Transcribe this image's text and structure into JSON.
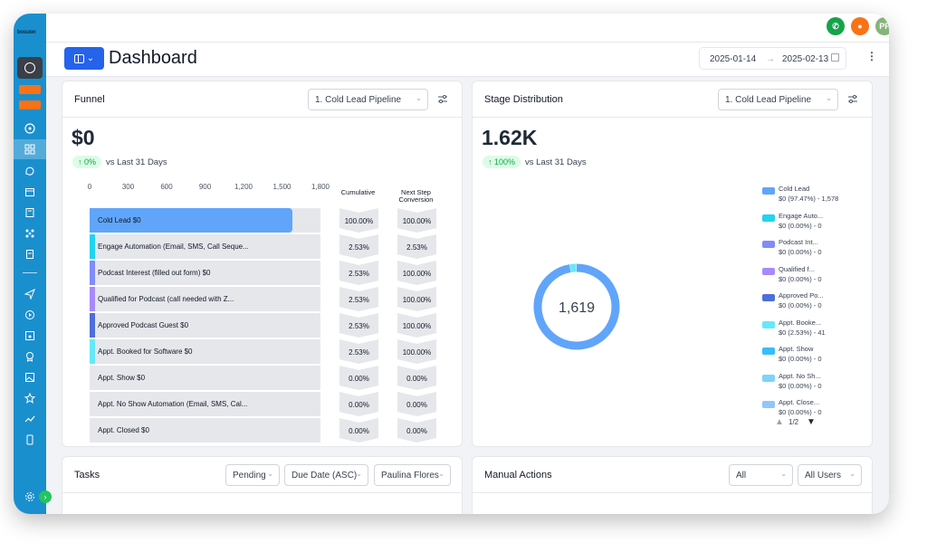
{
  "app": {
    "logo_text": "bosuon"
  },
  "topbar": {
    "phone_icon_color": "#16a34a",
    "bell_icon_color": "#f97316",
    "avatar_initials": "PF",
    "avatar_color": "#86b37a"
  },
  "header": {
    "title": "Dashboard",
    "date_start": "2025-01-14",
    "date_end": "2025-02-13",
    "arrow": "→",
    "more": "⋮"
  },
  "funnel": {
    "title": "Funnel",
    "pipeline_select": "1. Cold Lead Pipeline",
    "total": "$0",
    "delta": "↑ 0%",
    "vs_text": "vs Last 31 Days",
    "axis_ticks": [
      "0",
      "300",
      "600",
      "900",
      "1,200",
      "1,500",
      "1,800"
    ],
    "axis_max": 1800,
    "col_cumulative": "Cumulative",
    "col_next_step_1": "Next Step",
    "col_next_step_2": "Conversion",
    "rows": [
      {
        "label": "Cold Lead   $0",
        "count": 1578,
        "color": "#60a5fa",
        "cumulative": "100.00%",
        "next": "100.00%"
      },
      {
        "label": "Engage Automation (Email, SMS, Call Seque...",
        "count": 0,
        "color": "#22d3ee",
        "cumulative": "2.53%",
        "next": "2.53%"
      },
      {
        "label": "Podcast Interest (filled out form)   $0",
        "count": 0,
        "color": "#818cf8",
        "cumulative": "2.53%",
        "next": "100.00%"
      },
      {
        "label": "Qualified for Podcast (call needed with Z...",
        "count": 0,
        "color": "#a78bfa",
        "cumulative": "2.53%",
        "next": "100.00%"
      },
      {
        "label": "Approved Podcast Guest   $0",
        "count": 0,
        "color": "#4f6fd8",
        "cumulative": "2.53%",
        "next": "100.00%"
      },
      {
        "label": "Appt. Booked for Software   $0",
        "count": 41,
        "color": "#67e8f9",
        "cumulative": "2.53%",
        "next": "100.00%"
      },
      {
        "label": "Appt. Show   $0",
        "count": 0,
        "color": "#38bdf8",
        "cumulative": "0.00%",
        "next": "0.00%"
      },
      {
        "label": "Appt. No Show Automation (Email, SMS, Cal...",
        "count": 0,
        "color": "#7dd3fc",
        "cumulative": "0.00%",
        "next": "0.00%"
      },
      {
        "label": "Appt. Closed   $0",
        "count": 0,
        "color": "#93c5fd",
        "cumulative": "0.00%",
        "next": "0.00%"
      }
    ]
  },
  "stage": {
    "title": "Stage Distribution",
    "pipeline_select": "1. Cold Lead Pipeline",
    "total": "1.62K",
    "delta": "↑ 100%",
    "vs_text": "vs Last 31 Days",
    "donut_center": "1,619",
    "legend": [
      {
        "name": "Cold Lead",
        "value": "$0 (97.47%) - 1,578",
        "color": "#60a5fa"
      },
      {
        "name": "Engage Auto...",
        "value": "$0 (0.00%) - 0",
        "color": "#22d3ee"
      },
      {
        "name": "Podcast Int...",
        "value": "$0 (0.00%) - 0",
        "color": "#818cf8"
      },
      {
        "name": "Qualified f...",
        "value": "$0 (0.00%) - 0",
        "color": "#a78bfa"
      },
      {
        "name": "Approved Po...",
        "value": "$0 (0.00%) - 0",
        "color": "#4f6fd8"
      },
      {
        "name": "Appt. Booke...",
        "value": "$0 (2.53%) - 41",
        "color": "#67e8f9"
      },
      {
        "name": "Appt. Show",
        "value": "$0 (0.00%) - 0",
        "color": "#38bdf8"
      },
      {
        "name": "Appt. No Sh...",
        "value": "$0 (0.00%) - 0",
        "color": "#7dd3fc"
      },
      {
        "name": "Appt. Close...",
        "value": "$0 (0.00%) - 0",
        "color": "#93c5fd"
      }
    ],
    "pager": "1/2"
  },
  "tasks": {
    "title": "Tasks",
    "status": "Pending",
    "sort": "Due Date (ASC)",
    "user": "Paulina Flores"
  },
  "manual": {
    "title": "Manual Actions",
    "filter": "All",
    "users": "All Users"
  },
  "chart_data": [
    {
      "type": "bar",
      "categories": [
        "Cold Lead",
        "Engage Automation (Email, SMS, Call Seque...",
        "Podcast Interest (filled out form)",
        "Qualified for Podcast (call needed with Z...",
        "Approved Podcast Guest",
        "Appt. Booked for Software",
        "Appt. Show",
        "Appt. No Show Automation (Email, SMS, Cal...",
        "Appt. Closed"
      ],
      "values": [
        1578,
        0,
        0,
        0,
        0,
        41,
        0,
        0,
        0
      ],
      "xlim": [
        0,
        1800
      ],
      "title": "Funnel"
    },
    {
      "type": "pie",
      "categories": [
        "Cold Lead",
        "Engage Auto...",
        "Podcast Int...",
        "Qualified f...",
        "Approved Po...",
        "Appt. Booke...",
        "Appt. Show",
        "Appt. No Sh...",
        "Appt. Close..."
      ],
      "values": [
        1578,
        0,
        0,
        0,
        0,
        41,
        0,
        0,
        0
      ],
      "title": "Stage Distribution"
    }
  ]
}
